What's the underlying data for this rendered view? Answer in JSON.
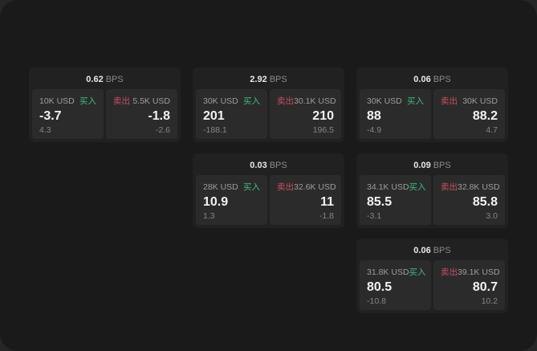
{
  "labels": {
    "buy": "买入",
    "sell": "卖出",
    "bps_unit": "BPS"
  },
  "colors": {
    "page_bg": "#262626",
    "window_bg": "#1a1a1a",
    "card_bg": "#212121",
    "panel_bg": "#2b2b2b",
    "buy_green": "#3dbd7d",
    "sell_red": "#c94e62"
  },
  "cards": [
    {
      "row": 1,
      "col": 1,
      "bps": "0.62",
      "buy": {
        "amount": "10K USD",
        "value": "-3.7",
        "sub": "4.3"
      },
      "sell": {
        "amount": "5.5K USD",
        "value": "-1.8",
        "sub": "-2.6"
      }
    },
    {
      "row": 1,
      "col": 2,
      "bps": "2.92",
      "buy": {
        "amount": "30K USD",
        "value": "201",
        "sub": "-188.1"
      },
      "sell": {
        "amount": "30.1K USD",
        "value": "210",
        "sub": "196.5"
      }
    },
    {
      "row": 1,
      "col": 3,
      "bps": "0.06",
      "buy": {
        "amount": "30K USD",
        "value": "88",
        "sub": "-4.9"
      },
      "sell": {
        "amount": "30K USD",
        "value": "88.2",
        "sub": "4.7"
      }
    },
    {
      "row": 2,
      "col": 2,
      "bps": "0.03",
      "buy": {
        "amount": "28K USD",
        "value": "10.9",
        "sub": "1.3"
      },
      "sell": {
        "amount": "32.6K USD",
        "value": "11",
        "sub": "-1.8"
      }
    },
    {
      "row": 2,
      "col": 3,
      "bps": "0.09",
      "buy": {
        "amount": "34.1K USD",
        "value": "85.5",
        "sub": "-3.1"
      },
      "sell": {
        "amount": "32.8K USD",
        "value": "85.8",
        "sub": "3.0"
      }
    },
    {
      "row": 3,
      "col": 3,
      "bps": "0.06",
      "buy": {
        "amount": "31.8K USD",
        "value": "80.5",
        "sub": "-10.8"
      },
      "sell": {
        "amount": "39.1K USD",
        "value": "80.7",
        "sub": "10.2"
      }
    }
  ]
}
